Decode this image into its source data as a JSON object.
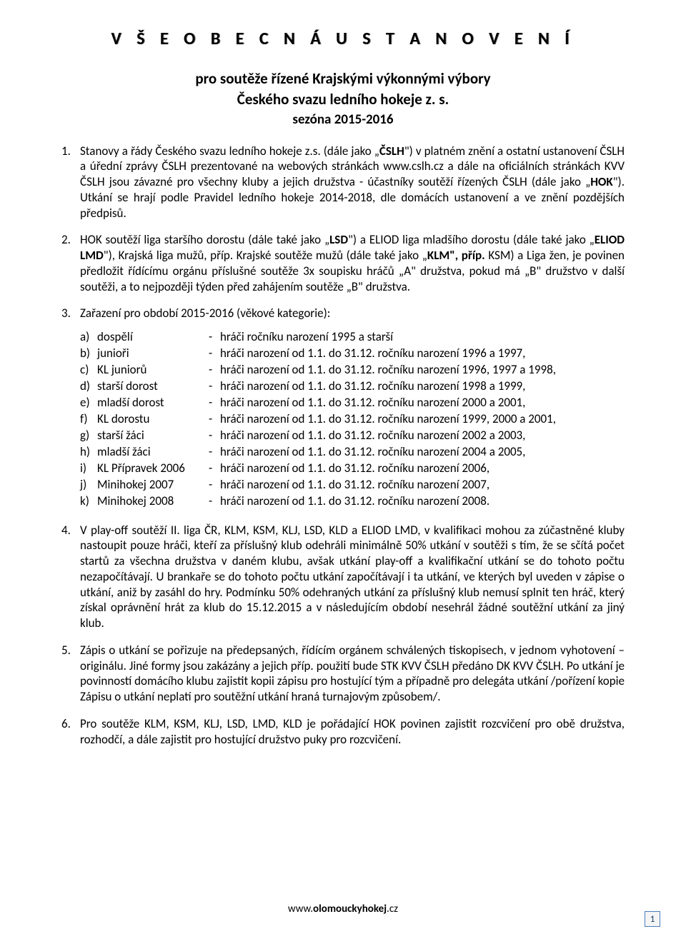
{
  "title": "V Š E O B E C N Á   U S T A N O V E N Í",
  "subtitle1": "pro soutěže řízené Krajskými výkonnými výbory",
  "subtitle2": "Českého svazu ledního hokeje z. s.",
  "season": "sezóna 2015-2016",
  "p1": {
    "n": "1.",
    "t1": "Stanovy a řády Českého svazu ledního hokeje z.s. (dále jako „",
    "b1": "ČSLH",
    "t2": "\") v platném znění a ostatní ustanovení ČSLH a úřední zprávy ČSLH prezentované na webových stránkách www.cslh.cz a dále na oficiálních stránkách KVV ČSLH jsou závazné pro všechny kluby a jejich družstva - účastníky soutěží řízených ČSLH (dále jako „",
    "b2": "HOK",
    "t3": "\"). Utkání se hrají podle Pravidel ledního hokeje 2014-2018, dle domácích ustanovení a ve znění pozdějších předpisů."
  },
  "p2": {
    "n": "2.",
    "t1": "HOK soutěží liga staršího dorostu (dále také jako „",
    "b1": "LSD",
    "t2": "\") a ELIOD liga mladšího dorostu (dále také jako „",
    "b2": "ELIOD LMD",
    "t3": "\"), Krajská liga mužů, příp. Krajské soutěže mužů (dále také jako „",
    "b3": "KLM\", příp.",
    "t4": " KSM) a Liga žen, je povinen předložit řídícímu orgánu příslušné soutěže 3x soupisku hráčů „A\" družstva, pokud má „B\" družstvo v další soutěži, a to nejpozději týden před zahájením soutěže „B\" družstva."
  },
  "p3": {
    "n": "3.",
    "t": "Zařazení pro období 2015-2016 (věkové kategorie):"
  },
  "categories": [
    {
      "l": "a)",
      "lbl": "dospělí",
      "d": "-",
      "desc": "hráči ročníku narození 1995 a starší"
    },
    {
      "l": "b)",
      "lbl": "junioři",
      "d": "-",
      "desc": "hráči narození od 1.1. do 31.12. ročníku narození 1996 a 1997,"
    },
    {
      "l": "c)",
      "lbl": "KL juniorů",
      "d": "-",
      "desc": "hráči narození od 1.1. do 31.12. ročníku narození 1996, 1997 a 1998,"
    },
    {
      "l": "d)",
      "lbl": "starší dorost",
      "d": "-",
      "desc": "hráči narození od 1.1. do 31.12. ročníku narození 1998 a 1999,"
    },
    {
      "l": "e)",
      "lbl": "mladší dorost",
      "d": "-",
      "desc": "hráči narození od 1.1. do 31.12. ročníku narození 2000 a 2001,"
    },
    {
      "l": "f)",
      "lbl": "KL dorostu",
      "d": "-",
      "desc": "hráči narození od 1.1. do 31.12. ročníku narození 1999, 2000 a 2001,"
    },
    {
      "l": "g)",
      "lbl": "starší žáci",
      "d": "-",
      "desc": "hráči narození od 1.1. do 31.12. ročníku narození 2002 a 2003,"
    },
    {
      "l": "h)",
      "lbl": "mladší žáci",
      "d": "-",
      "desc": "hráči narození od 1.1. do 31.12. ročníku narození 2004 a 2005,"
    },
    {
      "l": "i)",
      "lbl": "KL Přípravek 2006",
      "d": "-",
      "desc": "hráči narození od 1.1. do 31.12. ročníku narození 2006,"
    },
    {
      "l": "j)",
      "lbl": "Minihokej 2007",
      "d": "-",
      "desc": "hráči narození od 1.1. do 31.12. ročníku narození 2007,"
    },
    {
      "l": "k)",
      "lbl": "Minihokej 2008",
      "d": "-",
      "desc": "hráči narození od 1.1. do 31.12. ročníku narození 2008."
    }
  ],
  "p4": {
    "n": "4.",
    "t": "V play-off soutěží II. liga ČR, KLM, KSM, KLJ, LSD, KLD a ELIOD LMD, v kvalifikaci mohou za zúčastněné kluby nastoupit pouze hráči, kteří za příslušný klub odehráli minimálně 50% utkání v soutěži s tím, že se sčítá počet startů za všechna družstva v daném klubu, avšak utkání play-off a kvalifikační utkání se do tohoto počtu nezapočítávají. U brankaře se do tohoto počtu utkání započítávají i ta utkání, ve kterých byl uveden v zápise o utkání, aniž by zasáhl do hry. Podmínku 50% odehraných utkání za příslušný klub nemusí splnit ten hráč, který získal oprávnění hrát za klub do 15.12.2015 a v následujícím období nesehrál žádné soutěžní utkání za jiný klub."
  },
  "p5": {
    "n": "5.",
    "t": "Zápis o utkání se pořizuje na předepsaných, řídícím orgánem schválených tiskopisech, v jednom vyhotovení – originálu. Jiné formy jsou zakázány a jejich příp. použití bude STK KVV ČSLH předáno DK KVV ČSLH. Po utkání je povinností domácího klubu zajistit kopii zápisu pro hostující tým a případně pro delegáta utkání /pořízení kopie Zápisu o utkání neplatí pro soutěžní utkání hraná turnajovým způsobem/."
  },
  "p6": {
    "n": "6.",
    "t": "Pro soutěže KLM, KSM, KLJ, LSD, LMD, KLD je pořádající HOK povinen zajistit rozcvičení pro obě družstva, rozhodčí, a dále zajistit pro hostující družstvo puky pro rozcvičení."
  },
  "footer": {
    "w1": "www.",
    "w2": "olomouckyhokej",
    "w3": ".cz"
  },
  "pagenum": "1"
}
